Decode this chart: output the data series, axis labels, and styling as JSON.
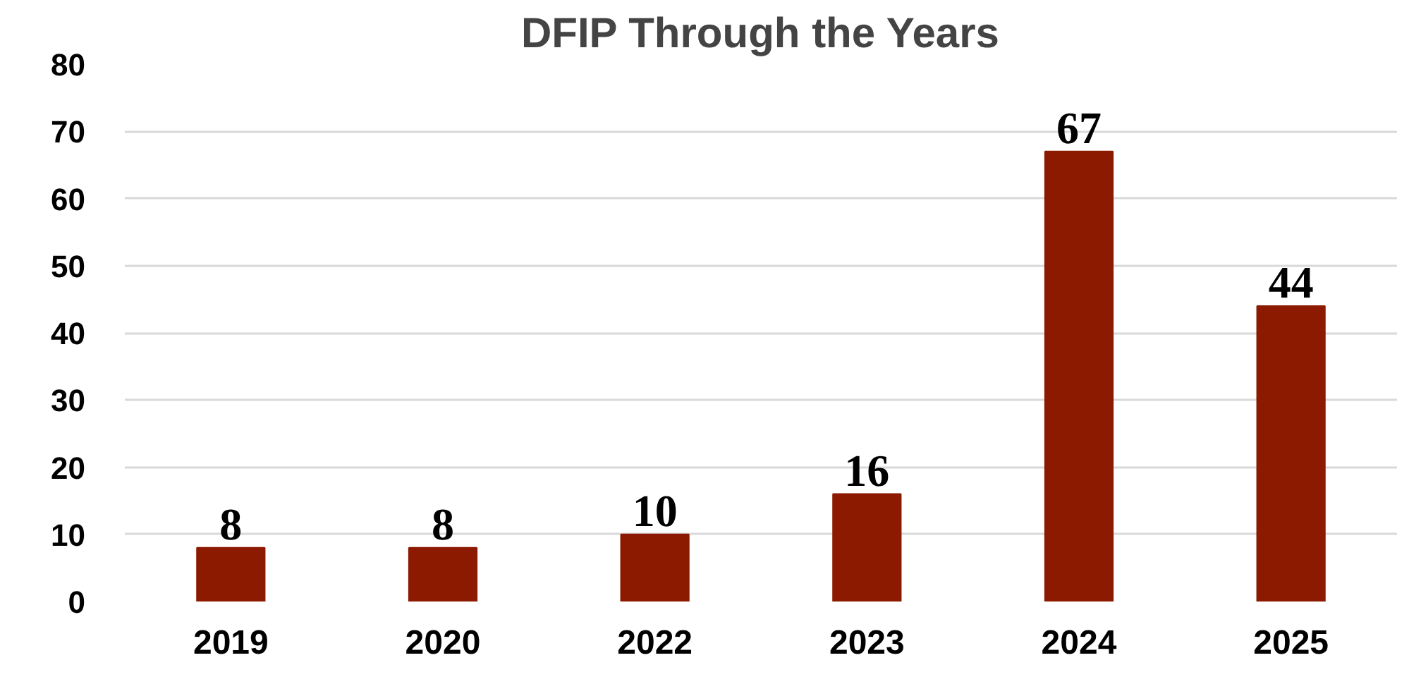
{
  "chart_data": {
    "type": "bar",
    "title": "DFIP Through the Years",
    "categories": [
      "2019",
      "2020",
      "2022",
      "2023",
      "2024",
      "2025"
    ],
    "values": [
      8,
      8,
      10,
      16,
      67,
      44
    ],
    "color": "#8b1a00",
    "ylim": [
      0,
      80
    ],
    "yticks": [
      0,
      10,
      20,
      30,
      40,
      50,
      60,
      70,
      80
    ],
    "grid": "y",
    "data_labels": true
  }
}
